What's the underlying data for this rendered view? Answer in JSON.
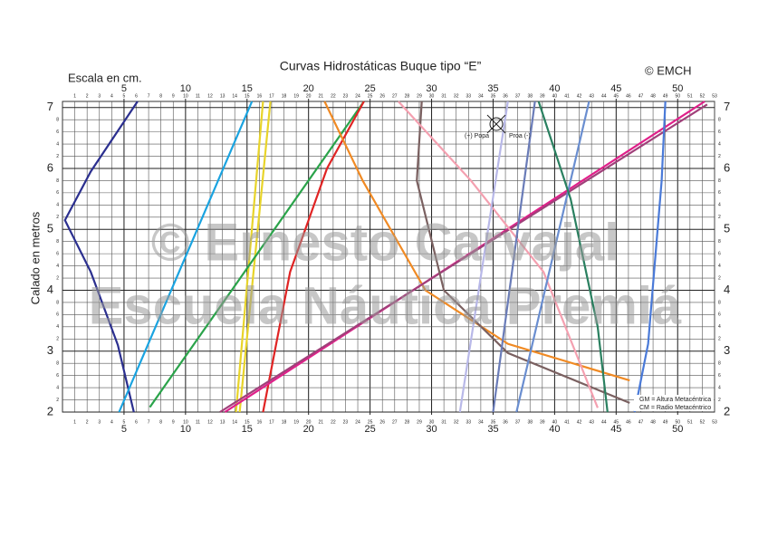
{
  "chart_data": {
    "type": "line",
    "title": "Curvas Hidrostáticas Buque tipo “E”",
    "scale_label": "Escala en cm.",
    "copyright": "© EMCH",
    "y_label": "Calado en metros",
    "watermark": [
      "© Ernesto Carvajal",
      "Escuela Náutica Premiá"
    ],
    "notes": [
      "GM = Altura Metacéntrica",
      "CM = Radio Metacéntrico"
    ],
    "trim_labels": [
      "(+) Popa",
      "Proa (-)"
    ],
    "xlim": [
      0,
      53
    ],
    "ylim": [
      2,
      7.1
    ],
    "xticks": [
      1,
      2,
      3,
      4,
      5,
      6,
      7,
      8,
      9,
      10,
      11,
      12,
      13,
      14,
      15,
      16,
      17,
      18,
      19,
      20,
      21,
      22,
      23,
      24,
      25,
      26,
      27,
      28,
      29,
      30,
      31,
      32,
      33,
      34,
      35,
      36,
      37,
      38,
      39,
      40,
      41,
      42,
      43,
      44,
      45,
      46,
      47,
      48,
      49,
      50,
      51,
      52,
      53
    ],
    "xticks_major": [
      5,
      10,
      15,
      20,
      25,
      30,
      35,
      40,
      45,
      50
    ],
    "yticks": [
      2,
      {
        "value": 2.2,
        "label": "2"
      },
      {
        "value": 2.4,
        "label": "4"
      },
      {
        "value": 2.6,
        "label": "6"
      },
      {
        "value": 2.8,
        "label": "8"
      },
      3,
      {
        "value": 3.2,
        "label": "2"
      },
      {
        "value": 3.4,
        "label": "4"
      },
      {
        "value": 3.6,
        "label": "6"
      },
      {
        "value": 3.8,
        "label": "8"
      },
      4,
      {
        "value": 4.2,
        "label": "2"
      },
      {
        "value": 4.4,
        "label": "4"
      },
      {
        "value": 4.6,
        "label": "6"
      },
      {
        "value": 4.8,
        "label": "8"
      },
      5,
      {
        "value": 5.2,
        "label": "2"
      },
      {
        "value": 5.4,
        "label": "4"
      },
      {
        "value": 5.6,
        "label": "6"
      },
      {
        "value": 5.8,
        "label": "8"
      },
      6,
      {
        "value": 6.2,
        "label": "2"
      },
      {
        "value": 6.4,
        "label": "4"
      },
      {
        "value": 6.6,
        "label": "6"
      },
      {
        "value": 6.8,
        "label": "8"
      },
      7
    ],
    "grid": true,
    "series": [
      {
        "color": "#2b2f8f",
        "x": [
          5.8,
          4.5,
          2.3,
          0.2,
          2.3,
          6.1
        ],
        "values": [
          2.0,
          3.1,
          4.3,
          5.15,
          5.95,
          7.1
        ]
      },
      {
        "color": "#1aa3e0",
        "x": [
          4.6,
          15.4
        ],
        "values": [
          2.0,
          7.1
        ]
      },
      {
        "color": "#e8d42a",
        "x": [
          14.1,
          16.3
        ],
        "values": [
          2.0,
          7.1
        ]
      },
      {
        "color": "#e8d42a",
        "x": [
          14.4,
          16.9
        ],
        "values": [
          2.0,
          7.1
        ]
      },
      {
        "color": "#2aa34a",
        "x": [
          7.1,
          24.5
        ],
        "values": [
          2.08,
          7.1
        ]
      },
      {
        "color": "#e02424",
        "x": [
          16.3,
          18.5,
          21.5,
          24.5
        ],
        "values": [
          2.0,
          4.3,
          6.0,
          7.1
        ]
      },
      {
        "color": "#f08a24",
        "x": [
          21.3,
          24.4,
          29.5,
          36.2,
          46.1
        ],
        "values": [
          7.1,
          5.8,
          4.0,
          3.12,
          2.52
        ]
      },
      {
        "color": "#e0208a",
        "x": [
          13.2,
          52.2
        ],
        "values": [
          2.0,
          7.1
        ]
      },
      {
        "color": "#a0407a",
        "x": [
          12.8,
          52.4
        ],
        "values": [
          2.0,
          7.05
        ]
      },
      {
        "color": "#7a6060",
        "x": [
          29.2,
          28.8,
          31.0,
          36.2,
          46.1
        ],
        "values": [
          7.1,
          5.8,
          4.0,
          2.97,
          2.15
        ]
      },
      {
        "color": "#f4a0b0",
        "x": [
          27.3,
          33.2,
          39.1,
          43.5
        ],
        "values": [
          7.1,
          5.8,
          4.3,
          2.07
        ]
      },
      {
        "color": "#b8b8e8",
        "x": [
          32.3,
          36.2
        ],
        "values": [
          2.0,
          7.1
        ]
      },
      {
        "color": "#6a7cb8",
        "x": [
          35.0,
          38.4
        ],
        "values": [
          2.0,
          7.1
        ]
      },
      {
        "color": "#6a8ed0",
        "x": [
          36.9,
          42.8
        ],
        "values": [
          2.0,
          7.1
        ]
      },
      {
        "color": "#2a8060",
        "x": [
          38.7,
          41.3,
          43.5,
          44.3
        ],
        "values": [
          7.1,
          5.5,
          3.4,
          2.0
        ]
      },
      {
        "color": "#4a7ad8",
        "x": [
          46.5,
          47.6,
          48.7,
          49.0
        ],
        "values": [
          2.0,
          3.12,
          5.8,
          7.1
        ]
      }
    ]
  }
}
